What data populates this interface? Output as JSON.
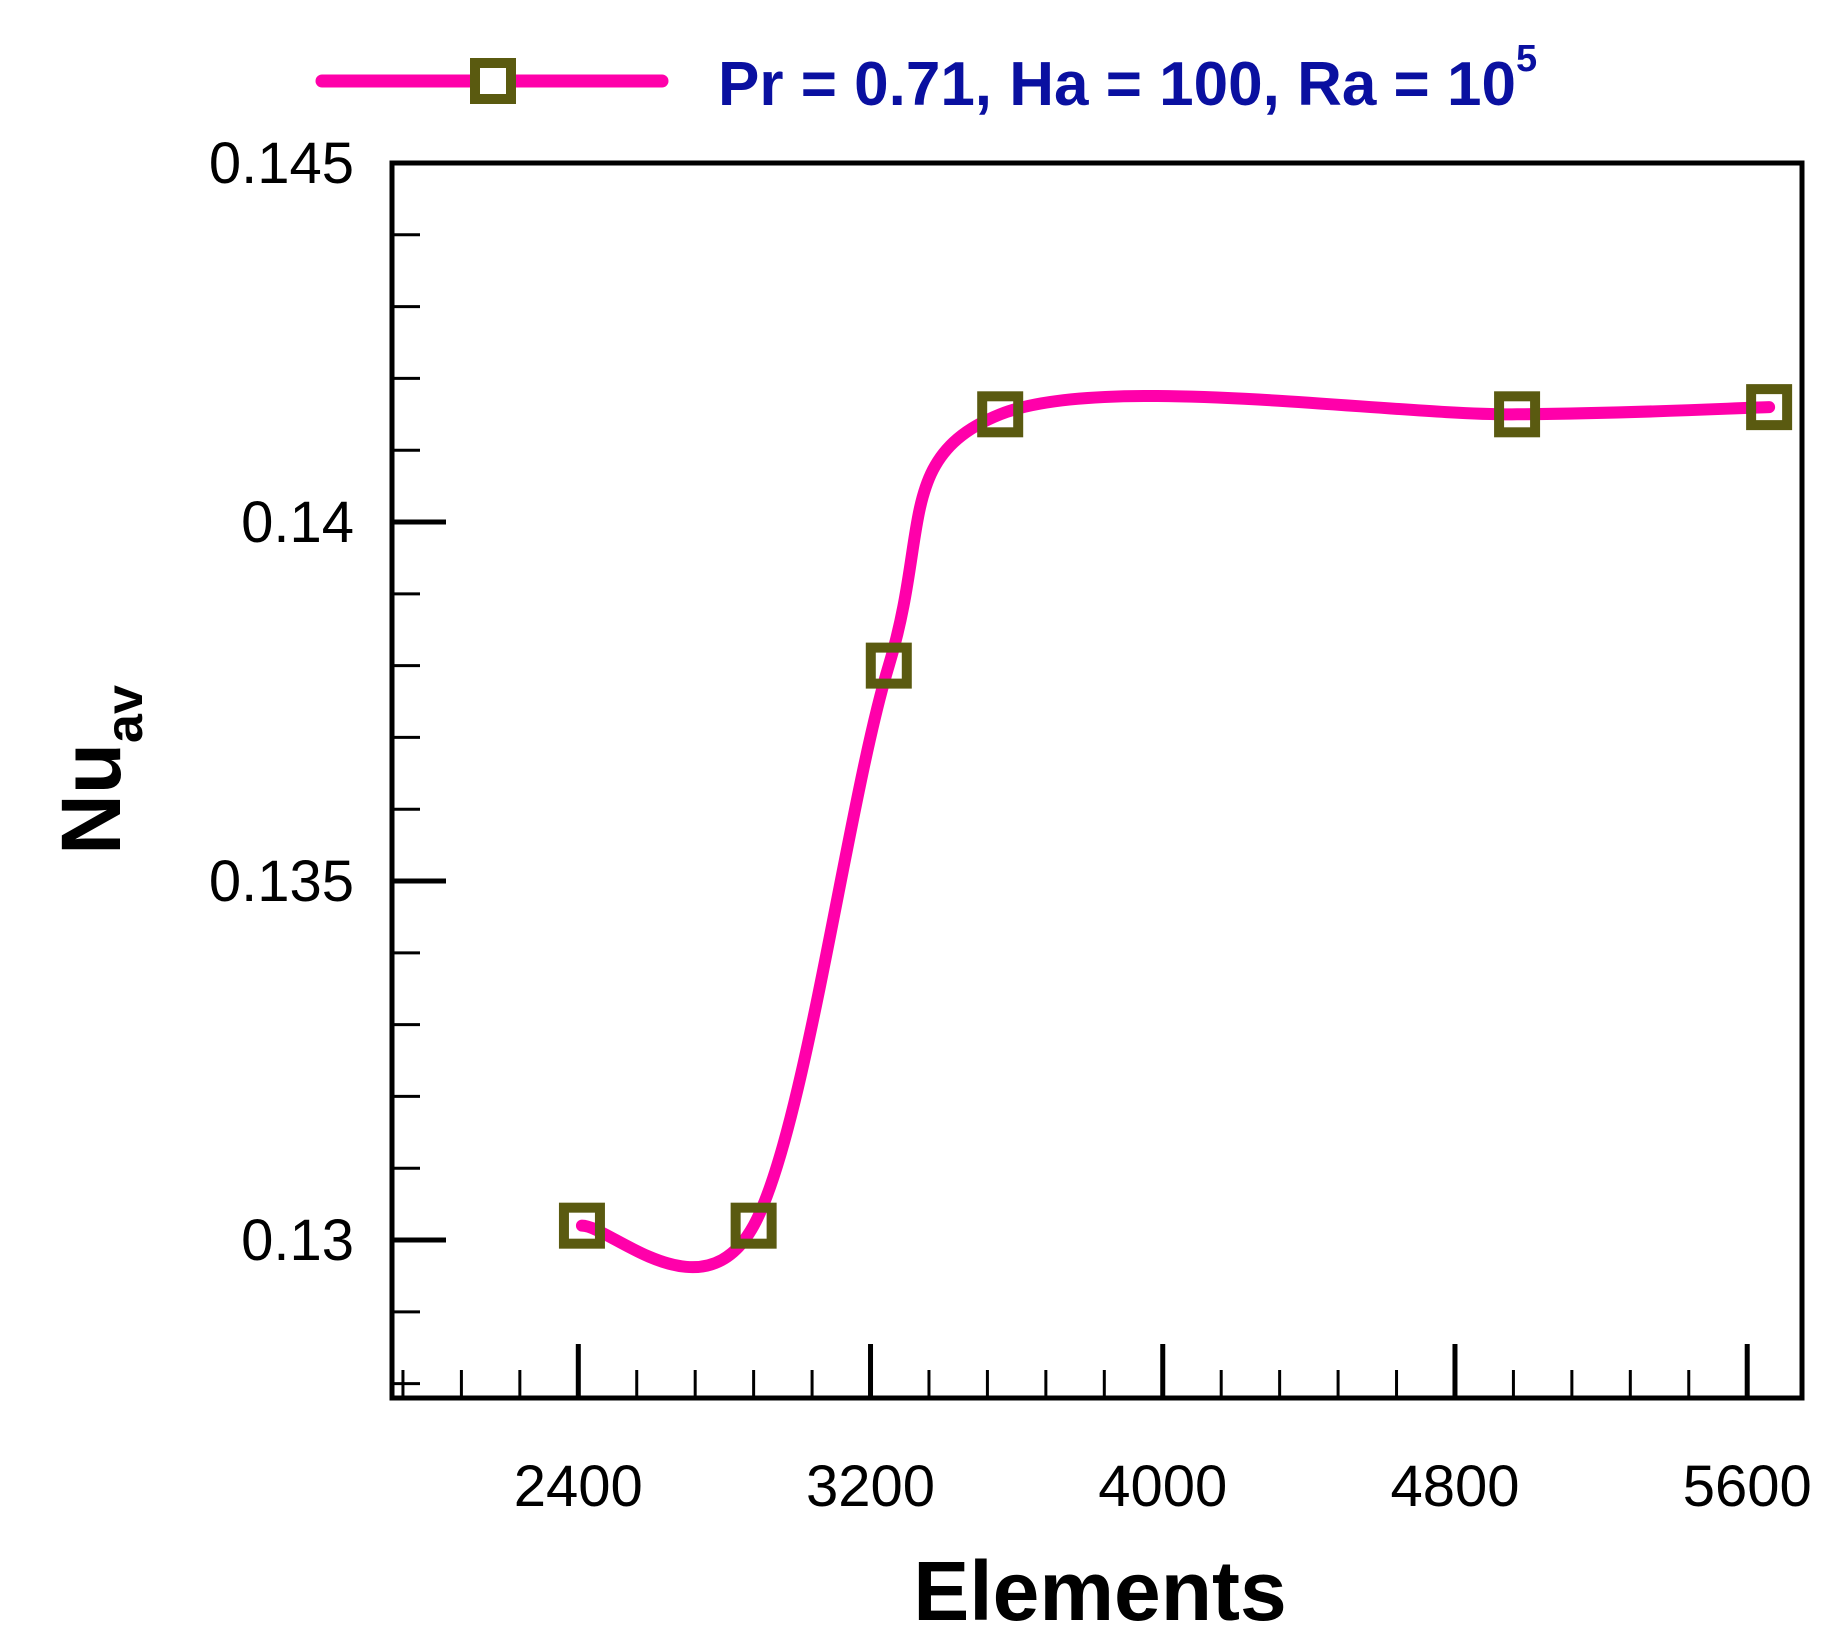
{
  "chart_data": {
    "type": "line",
    "xlabel": "Elements",
    "ylabel": {
      "main": "Nu",
      "sub": "av"
    },
    "xlim": [
      1890,
      5750
    ],
    "ylim": [
      0.1278,
      0.145
    ],
    "xticks": [
      2400,
      3200,
      4000,
      4800,
      5600
    ],
    "xtick_labels": [
      "2400",
      "3200",
      "4000",
      "4800",
      "5600"
    ],
    "x_minor_step": 160,
    "yticks": [
      0.13,
      0.135,
      0.14,
      0.145
    ],
    "ytick_labels": [
      "0.13",
      "0.135",
      "0.14",
      "0.145"
    ],
    "y_minor_step": 0.001,
    "grid": false,
    "legend_position": "top",
    "series": [
      {
        "name": "Pr = 0.71, Ha = 100, Ra = 10^5",
        "legend_parts": {
          "prefix": "Pr = 0.71, Ha = 100, Ra = 10",
          "superscript": "5"
        },
        "x": [
          2410,
          2880,
          3250,
          3555,
          4970,
          5660
        ],
        "y": [
          0.1302,
          0.1302,
          0.138,
          0.1415,
          0.1415,
          0.1416
        ],
        "line_color": "#ff00aa",
        "marker": "square",
        "marker_color": "#5a5a10"
      }
    ]
  },
  "colors": {
    "legend_text": "#0a10a0",
    "axis": "#000000"
  }
}
